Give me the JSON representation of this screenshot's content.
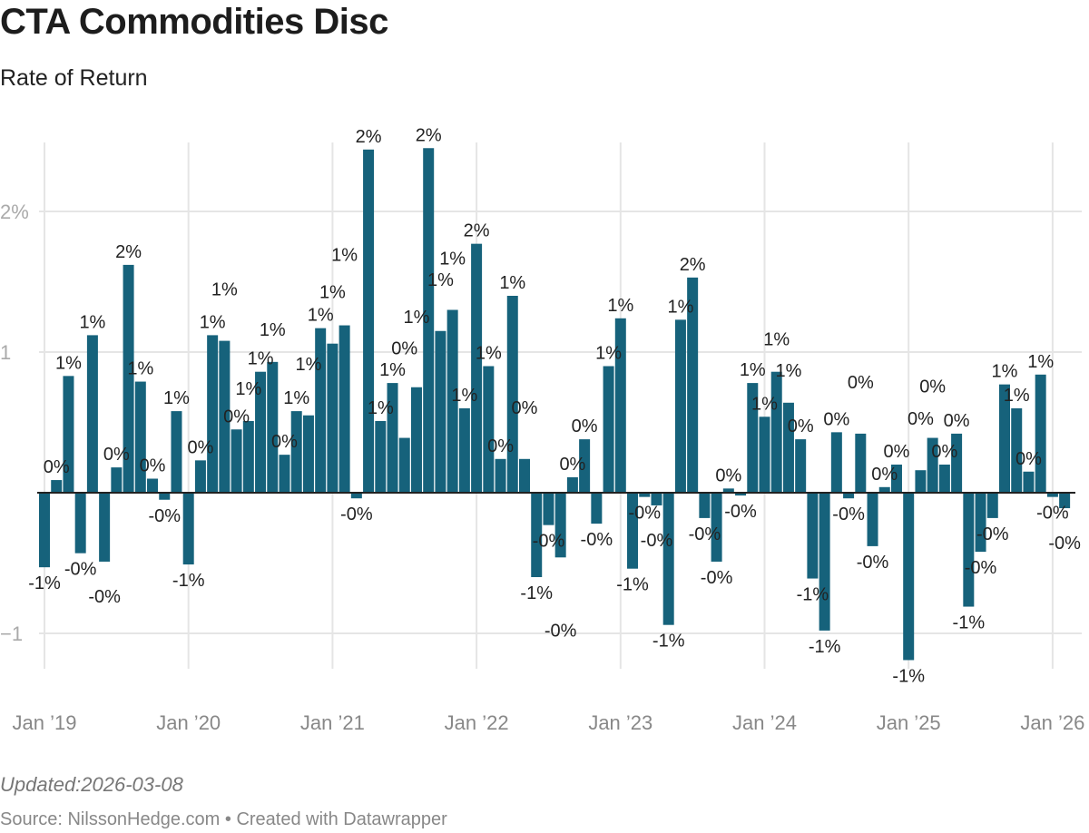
{
  "title": "CTA Commodities Disc",
  "subtitle": "Rate of Return",
  "footer": {
    "updated": "Updated:2026-03-08",
    "source": "Source: NilssonHedge.com • Created with Datawrapper"
  },
  "colors": {
    "bar": "#16627b",
    "baseline": "#222222",
    "grid": "#e5e5e5"
  },
  "chart_data": {
    "type": "bar",
    "title": "CTA Commodities Disc",
    "subtitle": "Rate of Return",
    "xlabel": "",
    "ylabel": "",
    "unit": "%",
    "ylim": [
      -1.2,
      2.5
    ],
    "grid": true,
    "y_ticks": [
      {
        "value": 2,
        "label": "2%"
      },
      {
        "value": 1,
        "label": "1"
      },
      {
        "value": -1,
        "label": "−1"
      }
    ],
    "x_ticks": [
      {
        "month": "2019-01",
        "label": "Jan ’19"
      },
      {
        "month": "2020-01",
        "label": "Jan ’20"
      },
      {
        "month": "2021-01",
        "label": "Jan ’21"
      },
      {
        "month": "2022-01",
        "label": "Jan ’22"
      },
      {
        "month": "2023-01",
        "label": "Jan ’23"
      },
      {
        "month": "2024-01",
        "label": "Jan ’24"
      },
      {
        "month": "2025-01",
        "label": "Jan ’25"
      },
      {
        "month": "2026-01",
        "label": "Jan ’26"
      }
    ],
    "categories": [
      "2019-01",
      "2019-02",
      "2019-03",
      "2019-04",
      "2019-05",
      "2019-06",
      "2019-07",
      "2019-08",
      "2019-09",
      "2019-10",
      "2019-11",
      "2019-12",
      "2020-01",
      "2020-02",
      "2020-03",
      "2020-04",
      "2020-05",
      "2020-06",
      "2020-07",
      "2020-08",
      "2020-09",
      "2020-10",
      "2020-11",
      "2020-12",
      "2021-01",
      "2021-02",
      "2021-03",
      "2021-04",
      "2021-05",
      "2021-06",
      "2021-07",
      "2021-08",
      "2021-09",
      "2021-10",
      "2021-11",
      "2021-12",
      "2022-01",
      "2022-02",
      "2022-03",
      "2022-04",
      "2022-05",
      "2022-06",
      "2022-07",
      "2022-08",
      "2022-09",
      "2022-10",
      "2022-11",
      "2022-12",
      "2023-01",
      "2023-02",
      "2023-03",
      "2023-04",
      "2023-05",
      "2023-06",
      "2023-07",
      "2023-08",
      "2023-09",
      "2023-10",
      "2023-11",
      "2023-12",
      "2024-01",
      "2024-02",
      "2024-03",
      "2024-04",
      "2024-05",
      "2024-06",
      "2024-07",
      "2024-08",
      "2024-09",
      "2024-10",
      "2024-11",
      "2024-12",
      "2025-01",
      "2025-02",
      "2025-03",
      "2025-04",
      "2025-05",
      "2025-06",
      "2025-07",
      "2025-08",
      "2025-09",
      "2025-10",
      "2025-11",
      "2025-12",
      "2026-01",
      "2026-02"
    ],
    "values": [
      -0.53,
      0.09,
      0.83,
      -0.43,
      1.12,
      -0.49,
      0.18,
      1.62,
      0.79,
      0.1,
      -0.05,
      0.58,
      -0.51,
      0.23,
      1.12,
      1.08,
      0.45,
      0.51,
      0.86,
      0.93,
      0.27,
      0.58,
      0.55,
      1.17,
      1.06,
      1.19,
      -0.04,
      2.44,
      0.51,
      0.78,
      0.39,
      0.75,
      2.45,
      1.15,
      1.3,
      0.6,
      1.77,
      0.9,
      0.24,
      1.4,
      0.24,
      -0.6,
      -0.23,
      -0.46,
      0.11,
      0.38,
      -0.22,
      0.9,
      1.24,
      -0.54,
      -0.03,
      -0.09,
      -0.94,
      1.23,
      1.53,
      -0.18,
      -0.49,
      0.03,
      -0.02,
      0.78,
      0.54,
      0.86,
      0.64,
      0.38,
      -0.61,
      -0.98,
      0.43,
      -0.04,
      0.42,
      -0.38,
      0.04,
      0.2,
      -1.19,
      0.16,
      0.39,
      0.2,
      0.42,
      -0.81,
      -0.42,
      -0.18,
      0.77,
      0.6,
      0.15,
      0.84,
      -0.03,
      -0.11
    ],
    "labels": [
      "-1%",
      "0%",
      "1%",
      "-0%",
      "1%",
      "-0%",
      "0%",
      "2%",
      "1%",
      "0%",
      "-0%",
      "1%",
      "-1%",
      "0%",
      "1%",
      "1%",
      "0%",
      "1%",
      "1%",
      "1%",
      "0%",
      "1%",
      "1%",
      "1%",
      "1%",
      "1%",
      "-0%",
      "2%",
      "1%",
      "1%",
      "0%",
      "1%",
      "2%",
      "1%",
      "1%",
      "1%",
      "2%",
      "1%",
      "0%",
      "1%",
      "0%",
      "-1%",
      "-0%",
      "-0%",
      "0%",
      "0%",
      "-0%",
      "1%",
      "1%",
      "-1%",
      "-0%",
      "-0%",
      "-1%",
      "1%",
      "2%",
      "-0%",
      "-0%",
      "0%",
      "-0%",
      "1%",
      "1%",
      "1%",
      "1%",
      "0%",
      "-1%",
      "-1%",
      "0%",
      "-0%",
      "0%",
      "-0%",
      "0%",
      "0%",
      "-1%",
      "0%",
      "0%",
      "0%",
      "0%",
      "-1%",
      "-0%",
      "-0%",
      "1%",
      "1%",
      "0%",
      "1%",
      "-0%",
      "-0%"
    ]
  }
}
